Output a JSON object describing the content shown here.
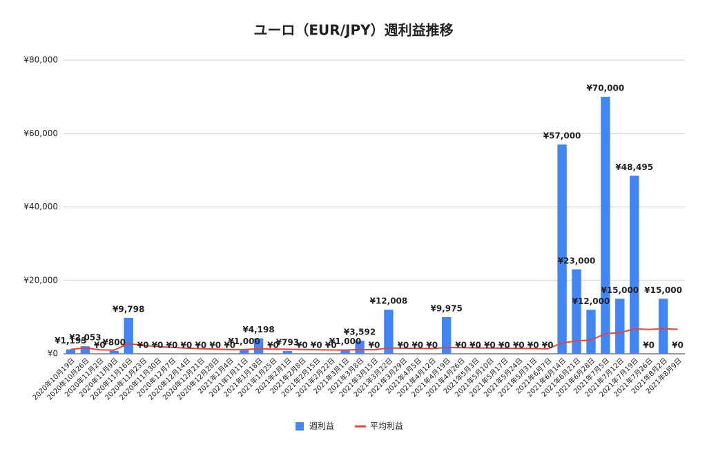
{
  "chart_data": {
    "type": "bar",
    "title": "ユーロ（EUR/JPY）週利益推移",
    "categories": [
      "2020年10月19日",
      "2020年10月26日",
      "2020年11月2日",
      "2020年11月9日",
      "2020年11月16日",
      "2020年11月23日",
      "2020年11月30日",
      "2020年12月7日",
      "2020年12月14日",
      "2020年12月21日",
      "2020年12月28日",
      "2021年1月4日",
      "2021年1月11日",
      "2021年1月18日",
      "2021年1月25日",
      "2021年2月1日",
      "2021年2月8日",
      "2021年2月15日",
      "2021年2月22日",
      "2021年3月1日",
      "2021年3月8日",
      "2021年3月15日",
      "2021年3月22日",
      "2021年3月29日",
      "2021年4月5日",
      "2021年4月12日",
      "2021年4月19日",
      "2021年4月26日",
      "2021年5月3日",
      "2021年5月10日",
      "2021年5月17日",
      "2021年5月24日",
      "2021年5月31日",
      "2021年6月7日",
      "2021年6月14日",
      "2021年6月21日",
      "2021年6月28日",
      "2021年7月5日",
      "2021年7月12日",
      "2021年7月19日",
      "2021年7月26日",
      "2021年8月2日",
      "2021年8月9日"
    ],
    "series": [
      {
        "name": "週利益",
        "type": "bar",
        "color": "#4285f4",
        "values": [
          1193,
          2053,
          0,
          800,
          9798,
          0,
          0,
          0,
          0,
          0,
          0,
          0,
          1000,
          4198,
          0,
          793,
          0,
          0,
          0,
          1000,
          3592,
          0,
          12008,
          0,
          0,
          0,
          9975,
          0,
          0,
          0,
          0,
          0,
          0,
          0,
          57000,
          23000,
          12000,
          70000,
          15000,
          48495,
          0,
          15000,
          0
        ],
        "value_labels": [
          "¥1,193",
          "¥2,053",
          "¥0",
          "¥800",
          "¥9,798",
          "¥0",
          "¥0",
          "¥0",
          "¥0",
          "¥0",
          "¥0",
          "¥0",
          "¥1,000",
          "¥4,198",
          "¥0",
          "¥793",
          "¥0",
          "¥0",
          "¥0",
          "¥1,000",
          "¥3,592",
          "¥0",
          "¥12,008",
          "¥0",
          "¥0",
          "¥0",
          "¥9,975",
          "¥0",
          "¥0",
          "¥0",
          "¥0",
          "¥0",
          "¥0",
          "¥0",
          "¥57,000",
          "¥23,000",
          "¥12,000",
          "¥70,000",
          "¥15,000",
          "¥48,495",
          "¥0",
          "¥15,000",
          "¥0"
        ]
      },
      {
        "name": "平均利益",
        "type": "line",
        "color": "#ea4335",
        "values": [
          1193,
          1623,
          1082,
          1012,
          2769,
          2307,
          1978,
          1731,
          1538,
          1384,
          1259,
          1154,
          1142,
          1360,
          1269,
          1240,
          1167,
          1102,
          1044,
          1042,
          1163,
          1110,
          1584,
          1518,
          1457,
          1401,
          1719,
          1658,
          1600,
          1547,
          1497,
          1450,
          1406,
          1365,
          2955,
          3511,
          3741,
          5484,
          5728,
          6798,
          6632,
          6831,
          6672
        ]
      }
    ],
    "ylim": [
      0,
      80000
    ],
    "yticks": [
      {
        "value": 0,
        "label": "¥0"
      },
      {
        "value": 20000,
        "label": "¥20,000"
      },
      {
        "value": 40000,
        "label": "¥40,000"
      },
      {
        "value": 60000,
        "label": "¥60,000"
      },
      {
        "value": 80000,
        "label": "¥80,000"
      }
    ],
    "grid": true,
    "legend": "bottom"
  }
}
